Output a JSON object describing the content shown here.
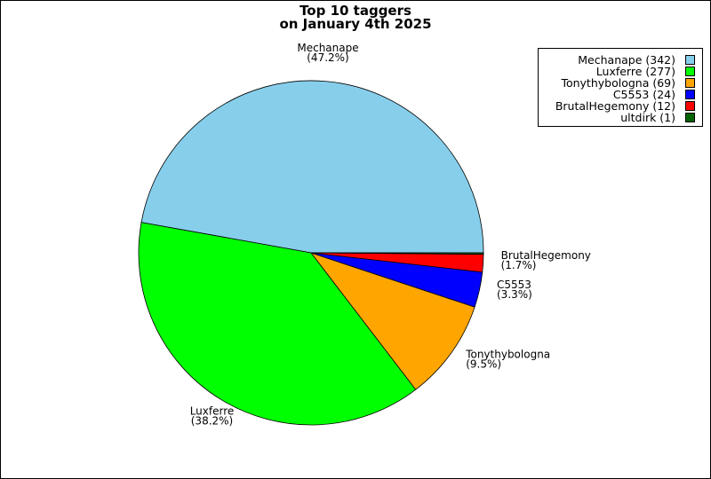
{
  "chart_data": {
    "type": "pie",
    "title": [
      "Top 10 taggers",
      "on January 4th 2025"
    ],
    "legend_position": "top-right",
    "slices": [
      {
        "name": "Mechanape",
        "value": 342,
        "percent_label": "(47.2%)",
        "legend_label": "Mechanape (342)",
        "color": "#87CEEB"
      },
      {
        "name": "Luxferre",
        "value": 277,
        "percent_label": "(38.2%)",
        "legend_label": "Luxferre (277)",
        "color": "#00FF00"
      },
      {
        "name": "Tonythybologna",
        "value": 69,
        "percent_label": "(9.5%)",
        "legend_label": "Tonythybologna (69)",
        "color": "#FFA500"
      },
      {
        "name": "C5553",
        "value": 24,
        "percent_label": "(3.3%)",
        "legend_label": "C5553 (24)",
        "color": "#0000FF"
      },
      {
        "name": "BrutalHegemony",
        "value": 12,
        "percent_label": "(1.7%)",
        "legend_label": "BrutalHegemony (12)",
        "color": "#FF0000"
      },
      {
        "name": "ultdirk",
        "value": 1,
        "percent_label": "",
        "legend_label": "ultdirk (1)",
        "color": "#006400"
      }
    ]
  }
}
